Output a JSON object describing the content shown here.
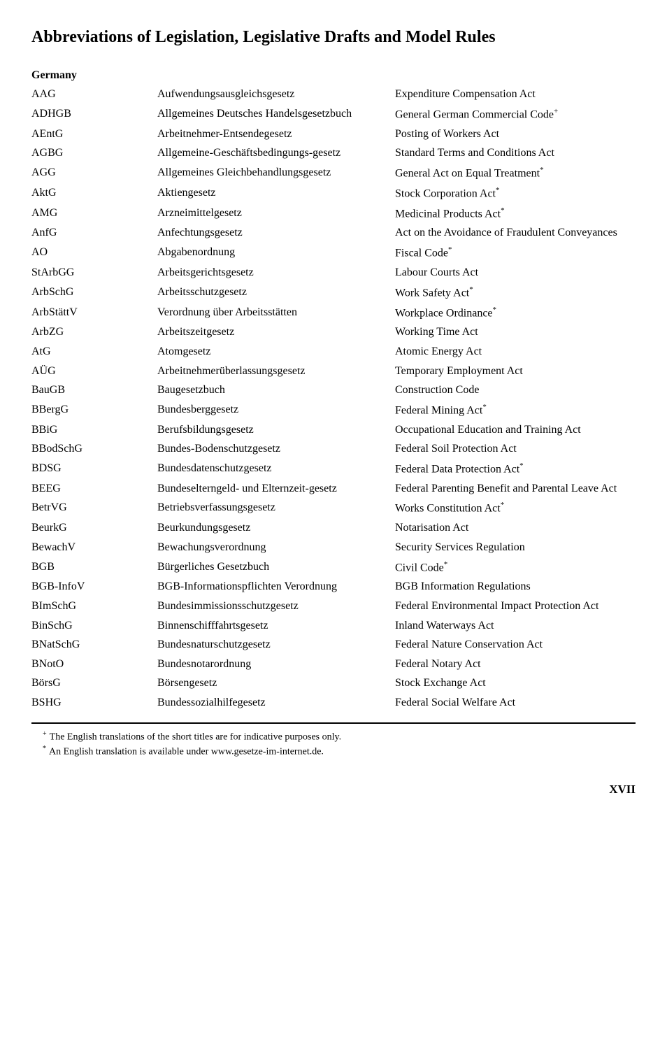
{
  "title": "Abbreviations of Legislation, Legislative Drafts and Model Rules",
  "country": "Germany",
  "rows": [
    {
      "abbrev": "AAG",
      "de": "Aufwendungsausgleichsgesetz",
      "en": "Expenditure Compensation Act"
    },
    {
      "abbrev": "ADHGB",
      "de": "Allgemeines Deutsches Handelsgesetzbuch",
      "en": "General German Commercial Code",
      "marker": "+"
    },
    {
      "abbrev": "AEntG",
      "de": "Arbeitnehmer-Entsendegesetz",
      "en": "Posting of Workers Act"
    },
    {
      "abbrev": "AGBG",
      "de": "Allgemeine-Geschäftsbedingungs-gesetz",
      "en": "Standard Terms and Conditions Act"
    },
    {
      "abbrev": "AGG",
      "de": "Allgemeines Gleichbehandlungsgesetz",
      "en": "General Act on Equal Treatment",
      "marker": "*"
    },
    {
      "abbrev": "AktG",
      "de": "Aktiengesetz",
      "en": "Stock Corporation Act",
      "marker": "*"
    },
    {
      "abbrev": "AMG",
      "de": "Arzneimittelgesetz",
      "en": "Medicinal Products Act",
      "marker": "*"
    },
    {
      "abbrev": "AnfG",
      "de": "Anfechtungsgesetz",
      "en": "Act on the Avoidance of Fraudulent Conveyances"
    },
    {
      "abbrev": "AO",
      "de": "Abgabenordnung",
      "en": "Fiscal Code",
      "marker": "*"
    },
    {
      "abbrev": "StArbGG",
      "de": "Arbeitsgerichtsgesetz",
      "en": "Labour Courts Act"
    },
    {
      "abbrev": "ArbSchG",
      "de": "Arbeitsschutzgesetz",
      "en": "Work Safety Act",
      "marker": "*"
    },
    {
      "abbrev": "ArbStättV",
      "de": "Verordnung über Arbeitsstätten",
      "en": "Workplace Ordinance",
      "marker": "*"
    },
    {
      "abbrev": "ArbZG",
      "de": "Arbeitszeitgesetz",
      "en": "Working Time Act"
    },
    {
      "abbrev": "AtG",
      "de": "Atomgesetz",
      "en": "Atomic Energy Act"
    },
    {
      "abbrev": "AÜG",
      "de": "Arbeitnehmerüberlassungsgesetz",
      "en": "Temporary Employment Act"
    },
    {
      "abbrev": "BauGB",
      "de": "Baugesetzbuch",
      "en": "Construction Code"
    },
    {
      "abbrev": "BBergG",
      "de": "Bundesberggesetz",
      "en": "Federal Mining Act",
      "marker": "*"
    },
    {
      "abbrev": "BBiG",
      "de": "Berufsbildungsgesetz",
      "en": "Occupational Education and Training Act"
    },
    {
      "abbrev": "BBodSchG",
      "de": "Bundes-Bodenschutzgesetz",
      "en": "Federal Soil Protection Act"
    },
    {
      "abbrev": "BDSG",
      "de": "Bundesdatenschutzgesetz",
      "en": "Federal Data Protection Act",
      "marker": "*"
    },
    {
      "abbrev": "BEEG",
      "de": "Bundeselterngeld- und Elternzeit-gesetz",
      "en": "Federal Parenting Benefit and Parental Leave Act"
    },
    {
      "abbrev": "BetrVG",
      "de": "Betriebsverfassungsgesetz",
      "en": "Works Constitution Act",
      "marker": "*"
    },
    {
      "abbrev": "BeurkG",
      "de": "Beurkundungsgesetz",
      "en": "Notarisation Act"
    },
    {
      "abbrev": "BewachV",
      "de": "Bewachungsverordnung",
      "en": "Security Services Regulation"
    },
    {
      "abbrev": "BGB",
      "de": "Bürgerliches Gesetzbuch",
      "en": "Civil Code",
      "marker": "*"
    },
    {
      "abbrev": "BGB-InfoV",
      "de": "BGB-Informationspflichten Verordnung",
      "en": "BGB Information Regulations"
    },
    {
      "abbrev": "BImSchG",
      "de": "Bundesimmissionsschutzgesetz",
      "en": "Federal Environmental Impact Protection Act"
    },
    {
      "abbrev": "BinSchG",
      "de": "Binnenschifffahrtsgesetz",
      "en": "Inland Waterways Act"
    },
    {
      "abbrev": "BNatSchG",
      "de": "Bundesnaturschutzgesetz",
      "en": "Federal Nature Conservation Act"
    },
    {
      "abbrev": "BNotO",
      "de": "Bundesnotarordnung",
      "en": "Federal Notary Act"
    },
    {
      "abbrev": "BörsG",
      "de": "Börsengesetz",
      "en": "Stock Exchange Act"
    },
    {
      "abbrev": "BSHG",
      "de": "Bundessozialhilfegesetz",
      "en": "Federal Social Welfare Act"
    }
  ],
  "footnotes": [
    {
      "marker": "+",
      "text": "The English translations of the short titles are for indicative purposes only."
    },
    {
      "marker": "*",
      "text": "An English translation is available under www.gesetze-im-internet.de."
    }
  ],
  "page_number": "XVII"
}
